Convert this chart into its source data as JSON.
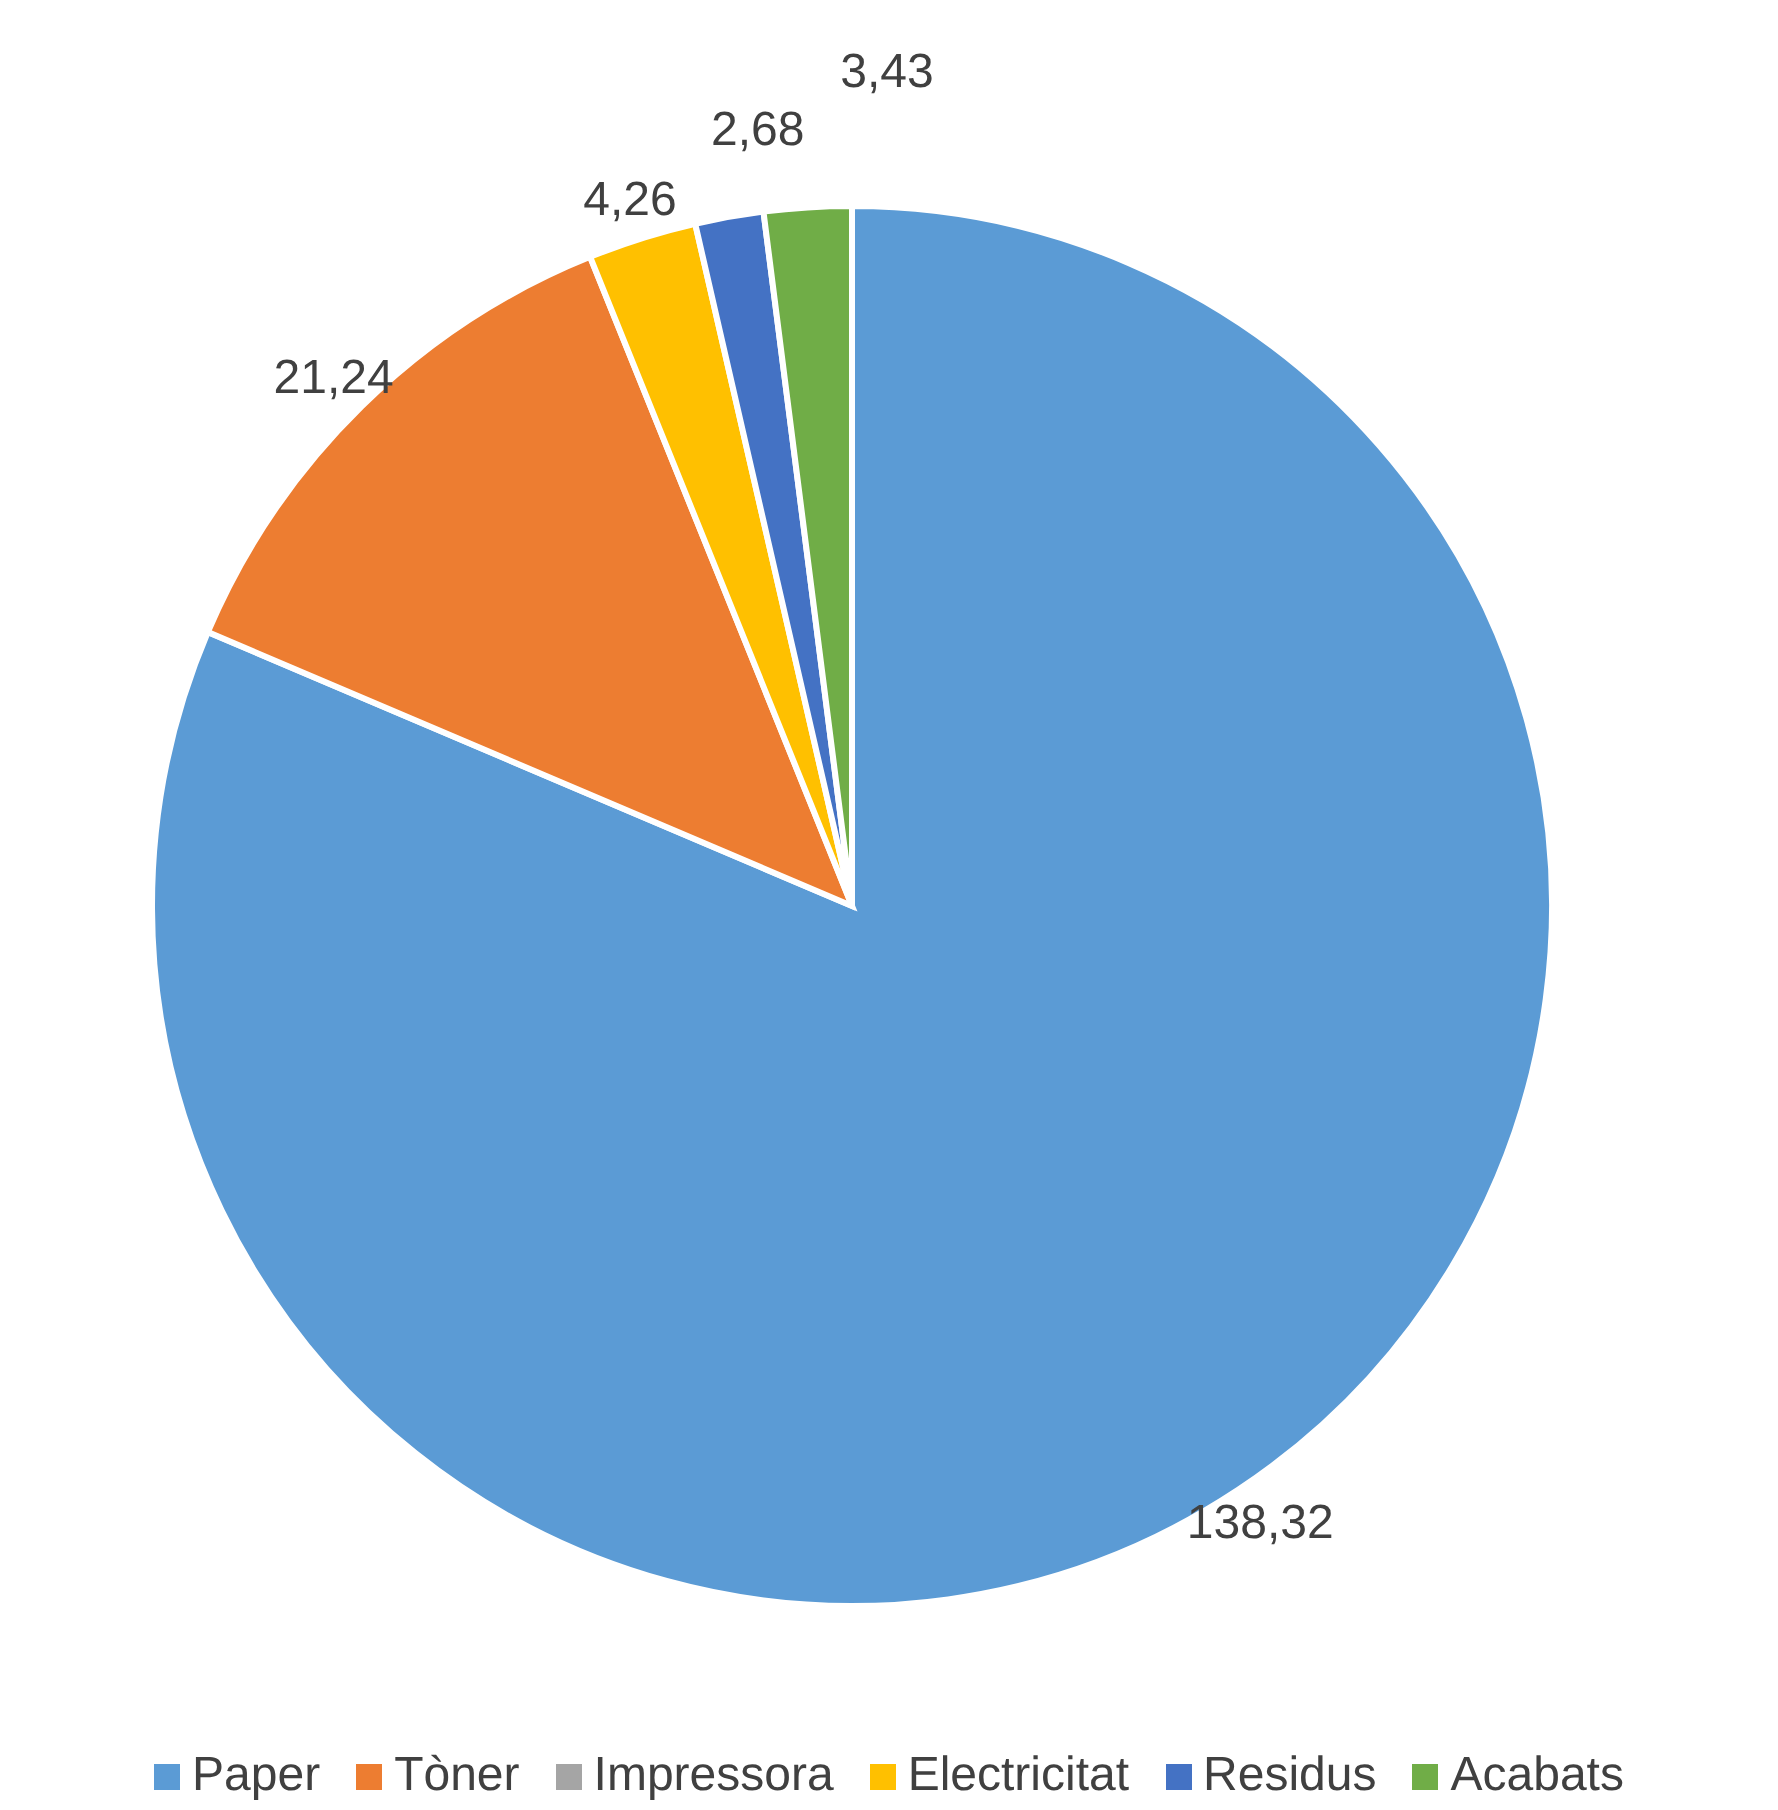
{
  "chart_data": {
    "type": "pie",
    "categories": [
      "Paper",
      "Tòner",
      "Impressora",
      "Electricitat",
      "Residus",
      "Acabats"
    ],
    "values": [
      138.32,
      21.24,
      null,
      4.26,
      2.68,
      3.43
    ],
    "value_labels": [
      "138,32",
      "21,24",
      null,
      "4,26",
      "2,68",
      "3,43"
    ],
    "colors": [
      "#5b9bd5",
      "#ed7d31",
      "#a5a5a5",
      "#ffc000",
      "#4472c4",
      "#70ad47"
    ],
    "legend": "bottom"
  }
}
